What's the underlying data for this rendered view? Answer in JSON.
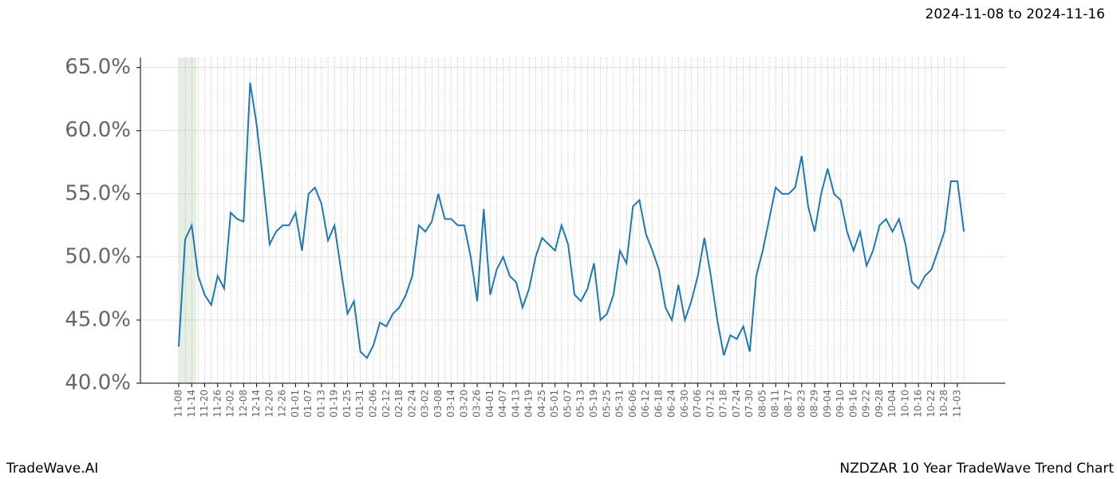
{
  "subtitle": "2024-11-08 to 2024-11-16",
  "footer_left": "TradeWave.AI",
  "footer_right": "NZDZAR 10 Year TradeWave Trend Chart",
  "chart_data": {
    "type": "line",
    "categories": [
      "11-08",
      null,
      "11-14",
      null,
      "11-20",
      null,
      "11-26",
      null,
      "12-02",
      null,
      "12-08",
      null,
      "12-14",
      null,
      "12-20",
      null,
      "12-26",
      null,
      "01-01",
      null,
      "01-07",
      null,
      "01-13",
      null,
      "01-19",
      null,
      "01-25",
      null,
      "01-31",
      null,
      "02-06",
      null,
      "02-12",
      null,
      "02-18",
      null,
      "02-24",
      null,
      "03-02",
      null,
      "03-08",
      null,
      "03-14",
      null,
      "03-20",
      null,
      "03-26",
      null,
      "04-01",
      null,
      "04-07",
      null,
      "04-13",
      null,
      "04-19",
      null,
      "04-25",
      null,
      "05-01",
      null,
      "05-07",
      null,
      "05-13",
      null,
      "05-19",
      null,
      "05-25",
      null,
      "05-31",
      null,
      "06-06",
      null,
      "06-12",
      null,
      "06-18",
      null,
      "06-24",
      null,
      "06-30",
      null,
      "07-06",
      null,
      "07-12",
      null,
      "07-18",
      null,
      "07-24",
      null,
      "07-30",
      null,
      "08-05",
      null,
      "08-11",
      null,
      "08-17",
      null,
      "08-23",
      null,
      "08-29",
      null,
      "09-04",
      null,
      "09-10",
      null,
      "09-16",
      null,
      "09-22",
      null,
      "09-28",
      null,
      "10-04",
      null,
      "10-10",
      null,
      "10-16",
      null,
      "10-22",
      null,
      "10-28",
      null,
      "11-03",
      null
    ],
    "series": [
      {
        "color": "#1f77b4",
        "values": [
          42.9,
          51.4,
          52.5,
          48.5,
          47.0,
          46.2,
          48.5,
          47.5,
          53.5,
          53.0,
          52.8,
          63.8,
          60.5,
          56.0,
          51.0,
          52.0,
          52.5,
          52.5,
          53.5,
          50.5,
          55.0,
          55.5,
          54.2,
          51.3,
          52.5,
          49.0,
          45.5,
          46.5,
          42.5,
          42.0,
          43.0,
          44.8,
          44.5,
          45.5,
          46.0,
          47.0,
          48.5,
          52.5,
          52.0,
          52.8,
          55.0,
          53.0,
          53.0,
          52.5,
          52.5,
          50.0,
          46.5,
          53.8,
          47.0,
          49.0,
          50.0,
          48.5,
          48.0,
          46.0,
          47.5,
          50.0,
          51.5,
          51.0,
          50.5,
          52.5,
          51.0,
          47.0,
          46.5,
          47.5,
          49.5,
          45.0,
          45.5,
          47.0,
          50.5,
          49.5,
          54.0,
          54.5,
          51.8,
          50.5,
          49.0,
          46.0,
          45.0,
          47.8,
          45.0,
          46.5,
          48.5,
          51.5,
          48.5,
          45.0,
          42.2,
          43.8,
          43.5,
          44.5,
          42.5,
          48.5,
          50.5,
          53.0,
          55.5,
          55.0,
          55.0,
          55.5,
          58.0,
          54.0,
          52.0,
          55.0,
          57.0,
          55.0,
          54.5,
          52.0,
          50.5,
          52.0,
          49.3,
          50.5,
          52.5,
          53.0,
          52.0,
          53.0,
          51.0,
          48.0,
          47.5,
          48.5,
          49.0,
          50.5,
          52.0,
          56.0,
          56.0,
          52.0
        ]
      }
    ],
    "ylim": [
      40,
      65.8
    ],
    "yticks": [
      {
        "value": 40,
        "label": "40.0%"
      },
      {
        "value": 45,
        "label": "45.0%"
      },
      {
        "value": 50,
        "label": "50.0%"
      },
      {
        "value": 55,
        "label": "55.0%"
      },
      {
        "value": 60,
        "label": "60.0%"
      },
      {
        "value": 65,
        "label": "65.0%"
      }
    ],
    "grid": true
  }
}
